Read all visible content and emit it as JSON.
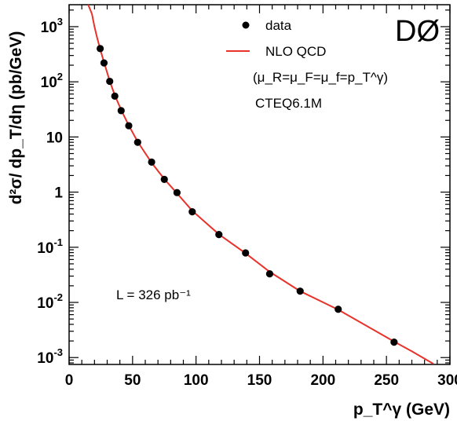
{
  "chart_data": {
    "type": "scatter",
    "xlabel": "p_T^γ (GeV)",
    "ylabel": "d²σ/ dp_T/dη (pb/GeV)",
    "xlim": [
      0,
      300
    ],
    "ylim": [
      0.00075,
      2500
    ],
    "yscale": "log",
    "grid": false,
    "legend_position": "top-right",
    "x_ticks": [
      "0",
      "50",
      "100",
      "150",
      "200",
      "250",
      "300"
    ],
    "y_ticks": [
      "10^-3",
      "10^-2",
      "10^-1",
      "1",
      "10",
      "10^2",
      "10^3"
    ],
    "series": [
      {
        "name": "data",
        "style": "points",
        "color": "#000000",
        "x": [
          24.5,
          27.5,
          32,
          36,
          41,
          47,
          54,
          65,
          75,
          85,
          97,
          118,
          139,
          158,
          182,
          212,
          256
        ],
        "y": [
          400,
          220,
          102,
          55,
          30,
          16,
          8.0,
          3.5,
          1.7,
          0.98,
          0.44,
          0.17,
          0.079,
          0.033,
          0.016,
          0.0075,
          0.0019
        ]
      },
      {
        "name": "NLO QCD",
        "style": "line",
        "color": "#e8322a",
        "x": [
          15,
          18,
          20,
          22,
          24.5,
          27.5,
          32,
          36,
          41,
          47,
          54,
          65,
          75,
          85,
          97,
          118,
          139,
          158,
          182,
          212,
          256,
          270,
          287
        ],
        "y": [
          4000,
          1700,
          1000,
          640,
          390,
          225,
          104,
          57,
          31,
          16.2,
          8.2,
          3.4,
          1.72,
          0.95,
          0.46,
          0.172,
          0.078,
          0.036,
          0.016,
          0.0074,
          0.00195,
          0.0013,
          0.00077
        ]
      }
    ],
    "legend": {
      "data_label": "data",
      "nlo_label": "NLO QCD",
      "scale_note": "(μ_R=μ_F=μ_f=p_T^γ)",
      "pdf": "CTEQ6.1M"
    },
    "annotations": {
      "logo": "DØ",
      "luminosity": "L = 326 pb⁻¹"
    }
  }
}
